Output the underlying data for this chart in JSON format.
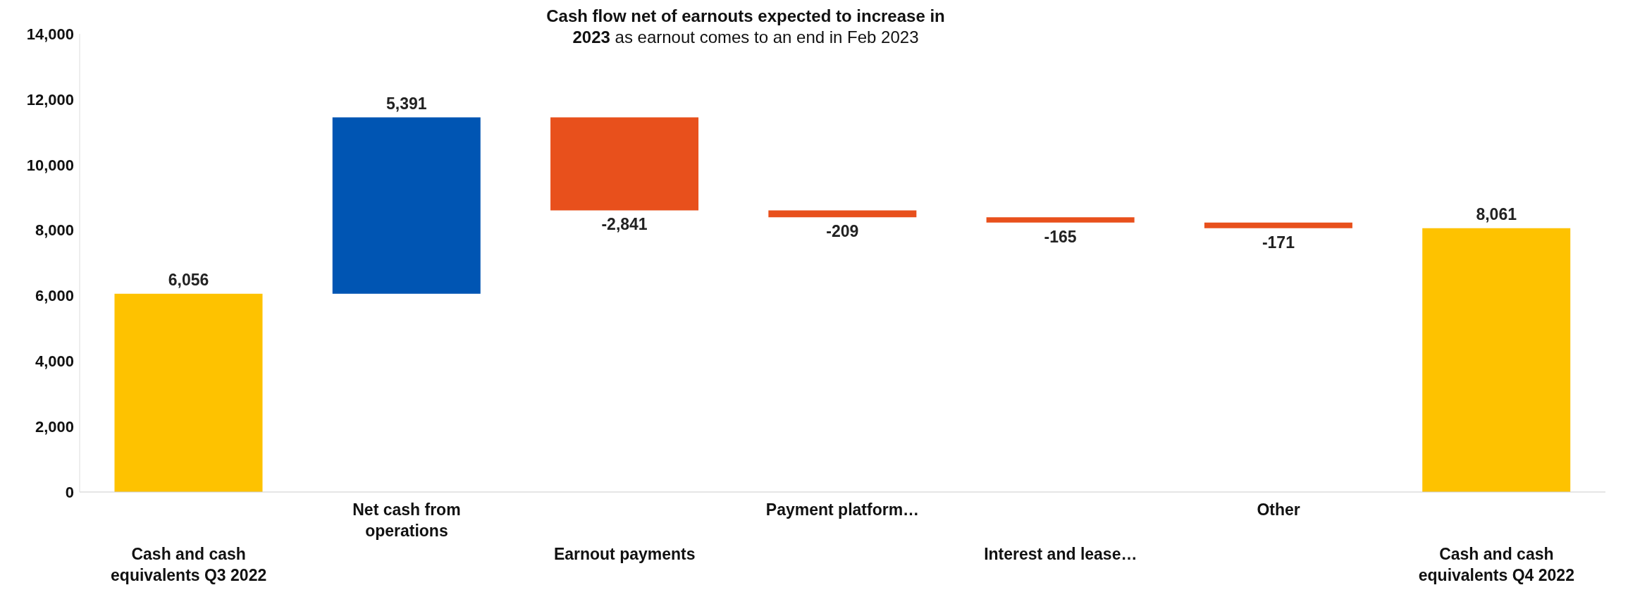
{
  "chart_data": {
    "type": "bar",
    "title": "Cash flow net of earnouts expected to increase in 2023",
    "subtitle": "as earnout comes to an end in Feb 2023",
    "categories": [
      "Cash and cash equivalents Q3 2022",
      "Net cash from operations",
      "Earnout payments",
      "Payment platform…",
      "Interest and lease…",
      "Other",
      "Cash and cash equivalents Q4 2022"
    ],
    "values": [
      6056,
      5391,
      -2841,
      -209,
      -165,
      -171,
      8061
    ],
    "base": [
      0,
      6056,
      11447,
      8606,
      8397,
      8232,
      0
    ],
    "colors": [
      "#fec200",
      "#0055b3",
      "#e8501c",
      "#e8501c",
      "#e8501c",
      "#e8501c",
      "#fec200"
    ],
    "ylim": [
      0,
      14000
    ],
    "yticks": [
      {
        "value": 0,
        "label": "0"
      },
      {
        "value": 2000,
        "label": "2,000"
      },
      {
        "value": 4000,
        "label": "4,000"
      },
      {
        "value": 6000,
        "label": "6,000"
      },
      {
        "value": 8000,
        "label": "8,000"
      },
      {
        "value": 10000,
        "label": "10,000"
      },
      {
        "value": 12000,
        "label": "12,000"
      },
      {
        "value": 14000,
        "label": "14,000"
      }
    ],
    "value_labels": [
      "6,056",
      "5,391",
      "-2,841",
      "-209",
      "-165",
      "-171",
      "8,061"
    ]
  }
}
